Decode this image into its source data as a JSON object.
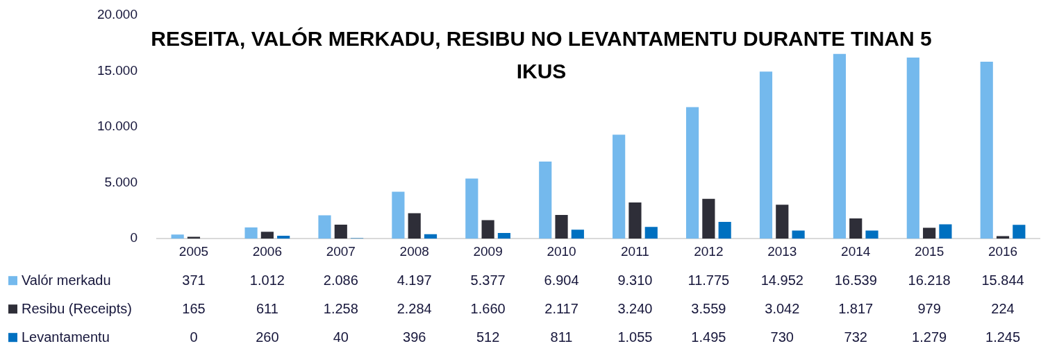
{
  "chart_data": {
    "type": "bar",
    "title": "RESEITA, VALÓR MERKADU, RESIBU NO LEVANTAMENTU DURANTE TINAN 5 IKUS",
    "categories": [
      "2005",
      "2006",
      "2007",
      "2008",
      "2009",
      "2010",
      "2011",
      "2012",
      "2013",
      "2014",
      "2015",
      "2016"
    ],
    "series": [
      {
        "name": "Valór merkadu",
        "color": "#74b9ed",
        "values": [
          371,
          1012,
          2086,
          4197,
          5377,
          6904,
          9310,
          11775,
          14952,
          16539,
          16218,
          15844
        ],
        "value_labels": [
          "371",
          "1.012",
          "2.086",
          "4.197",
          "5.377",
          "6.904",
          "9.310",
          "11.775",
          "14.952",
          "16.539",
          "16.218",
          "15.844"
        ]
      },
      {
        "name": "Resibu (Receipts)",
        "color": "#2e2e38",
        "values": [
          165,
          611,
          1258,
          2284,
          1660,
          2117,
          3240,
          3559,
          3042,
          1817,
          979,
          224
        ],
        "value_labels": [
          "165",
          "611",
          "1.258",
          "2.284",
          "1.660",
          "2.117",
          "3.240",
          "3.559",
          "3.042",
          "1.817",
          "979",
          "224"
        ]
      },
      {
        "name": "Levantamentu",
        "color": "#0070c0",
        "values": [
          0,
          260,
          40,
          396,
          512,
          811,
          1055,
          1495,
          730,
          732,
          1279,
          1245
        ],
        "value_labels": [
          "0",
          "260",
          "40",
          "396",
          "512",
          "811",
          "1.055",
          "1.495",
          "730",
          "732",
          "1.279",
          "1.245"
        ]
      }
    ],
    "ylim": [
      0,
      20000
    ],
    "yticks": [
      0,
      {
        "value": 5000,
        "label": "5.000"
      },
      {
        "value": 10000,
        "label": "10.000"
      },
      {
        "value": 15000,
        "label": "15.000"
      },
      {
        "value": 20000,
        "label": "20.000"
      }
    ],
    "grid": false,
    "legend": "bottom"
  }
}
